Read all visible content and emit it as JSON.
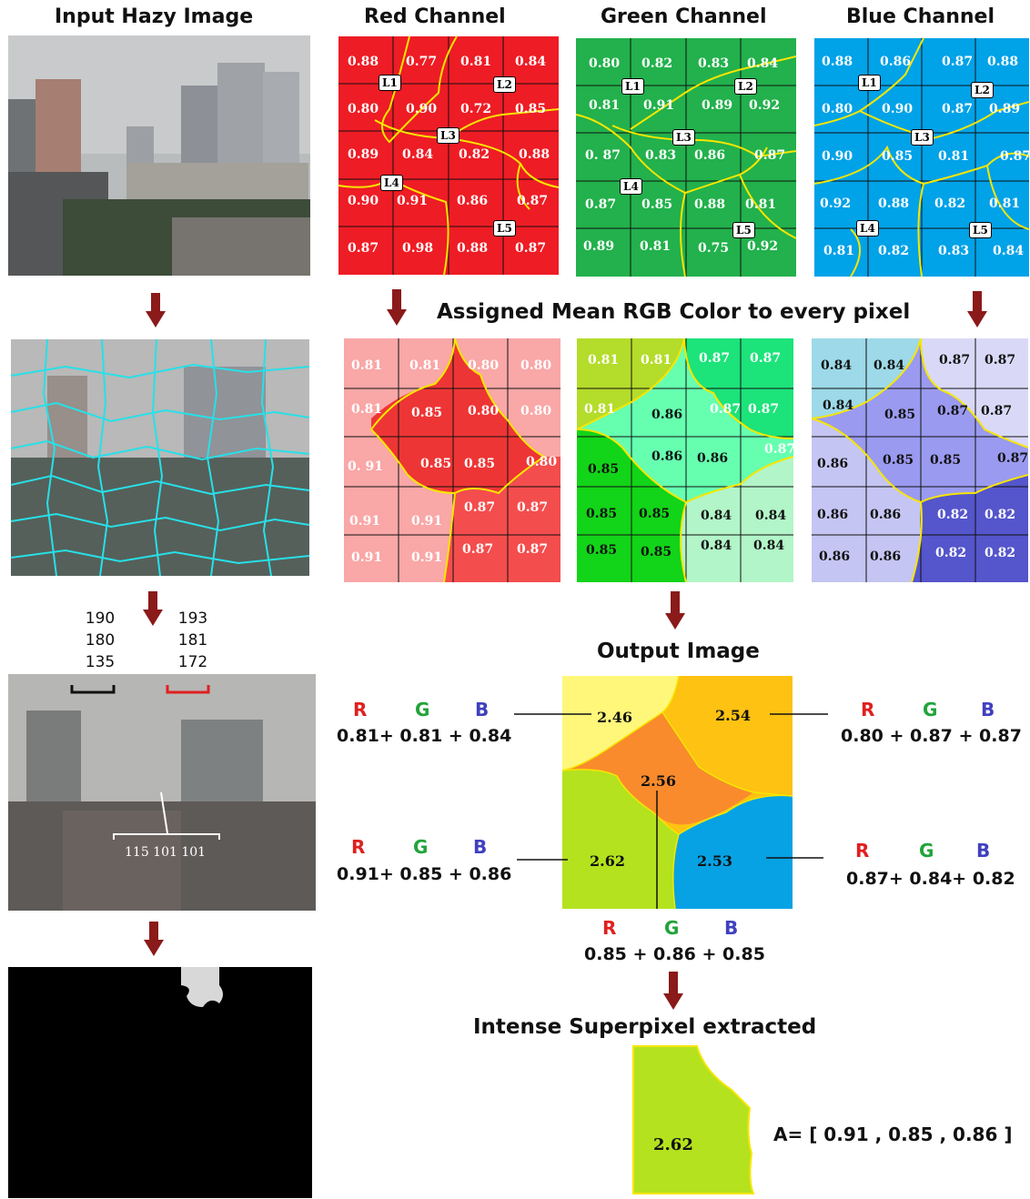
{
  "headers": {
    "input": "Input Hazy Image",
    "red": "Red Channel",
    "green": "Green Channel",
    "blue": "Blue Channel",
    "assigned": "Assigned Mean RGB Color to every pixel",
    "output": "Output Image",
    "intense": "Intense Superpixel extracted"
  },
  "region_labels": [
    "L1",
    "L2",
    "L3",
    "L4",
    "L5"
  ],
  "red_grid": [
    [
      "0.88",
      "0.77",
      "0.81",
      "0.84"
    ],
    [
      "0.80",
      "0.90",
      "0.72",
      "0.85"
    ],
    [
      "0.89",
      "0.84",
      "0.82",
      "0.88"
    ],
    [
      "0.90",
      "0.91",
      "0.86",
      "0.87"
    ],
    [
      "0.87",
      "0.98",
      "0.88",
      "0.87"
    ]
  ],
  "green_grid": [
    [
      "0.80",
      "0.82",
      "0.83",
      "0.84"
    ],
    [
      "0.81",
      "0.91",
      "0.89",
      "0.92"
    ],
    [
      "0. 87",
      "0.83",
      "0.86",
      "0.87"
    ],
    [
      "0.87",
      "0.85",
      "0.88",
      "0.81"
    ],
    [
      "0.89",
      "0.81",
      "0.75",
      "0.92"
    ]
  ],
  "blue_grid": [
    [
      "0.88",
      "0.86",
      "0.87",
      "0.88"
    ],
    [
      "0.80",
      "0.90",
      "0.87",
      "0.89"
    ],
    [
      "0.90",
      "0.85",
      "0.81",
      "0.87"
    ],
    [
      "0.92",
      "0.88",
      "0.82",
      "0.81"
    ],
    [
      "0.81",
      "0.82",
      "0.83",
      "0.84"
    ]
  ],
  "red_mean_grid": [
    [
      "0.81",
      "0.81",
      "0.80",
      "0.80"
    ],
    [
      "0.81",
      "0.85",
      "0.80",
      "0.80"
    ],
    [
      "0. 91",
      "0.85",
      "0.85",
      "0.80"
    ],
    [
      "0.91",
      "0.91",
      "0.87",
      "0.87"
    ],
    [
      "0.91",
      "0.91",
      "0.87",
      "0.87"
    ]
  ],
  "green_mean_grid": [
    [
      "0.81",
      "0.81",
      "0.87",
      "0.87"
    ],
    [
      "0.81",
      "0.86",
      "0.87",
      "0.87"
    ],
    [
      "0.85",
      "0.86",
      "0.86",
      "0.87"
    ],
    [
      "0.85",
      "0.85",
      "0.84",
      "0.84"
    ],
    [
      "0.85",
      "0.85",
      "0.84",
      "0.84"
    ]
  ],
  "blue_mean_grid": [
    [
      "0.84",
      "0.84",
      "0.87",
      "0.87"
    ],
    [
      "0.84",
      "0.85",
      "0.87",
      "0.87"
    ],
    [
      "0.86",
      "0.85",
      "0.85",
      "0.87"
    ],
    [
      "0.86",
      "0.86",
      "0.82",
      "0.82"
    ],
    [
      "0.86",
      "0.86",
      "0.82",
      "0.82"
    ]
  ],
  "pixel_values": {
    "left": [
      "190",
      "180",
      "135"
    ],
    "right": [
      "193",
      "181",
      "172"
    ],
    "center": "115 101 101"
  },
  "output_regions": {
    "top_left": "2.46",
    "top_right": "2.54",
    "center": "2.56",
    "bottom_left": "2.62",
    "bottom_right": "2.53"
  },
  "rgb_letters": [
    "R",
    "G",
    "B"
  ],
  "sums": {
    "top_left": "0.81+ 0.81 + 0.84",
    "top_right": "0.80 + 0.87 + 0.87",
    "bottom_left": "0.91+ 0.85 + 0.86",
    "bottom_right": "0.87+ 0.84+ 0.82",
    "center": "0.85 + 0.86 + 0.85"
  },
  "intense_value": "2.62",
  "atmospheric_light": "A= [ 0.91 , 0.85 , 0.86 ]",
  "colors": {
    "red_channel": "#ee1c25",
    "green_channel": "#22b14c",
    "blue_channel": "#00a2e8",
    "boundary": "#f7e600",
    "arrow": "#8b1a1a",
    "letter_r": "#e02020",
    "letter_g": "#22a33a",
    "letter_b": "#4040c0"
  }
}
